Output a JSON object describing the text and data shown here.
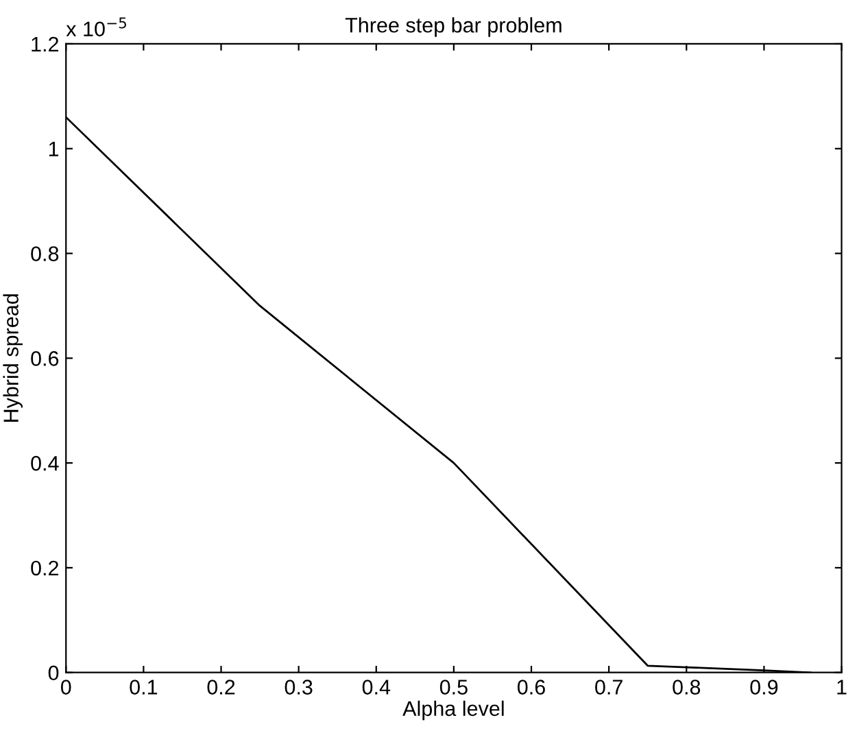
{
  "chart_data": {
    "type": "line",
    "title": "Three step bar problem",
    "xlabel": "Alpha level",
    "ylabel": "Hybrid spread",
    "annotations": [
      "x 10$^{−5}$"
    ],
    "x": [
      0,
      0.25,
      0.5,
      0.75,
      0.8,
      0.9,
      0.96
    ],
    "series": [
      {
        "color": "#000000",
        "values": [
          1.06,
          0.7,
          0.4,
          0.013,
          0.01,
          0.004,
          0.0
        ]
      }
    ],
    "xlim": [
      0,
      1
    ],
    "xticks": [
      0,
      0.1,
      0.2,
      0.3,
      0.4,
      0.5,
      0.6,
      0.7,
      0.8,
      0.9,
      1
    ],
    "ylim": [
      0,
      1.2
    ],
    "yticks": [
      0,
      0.2,
      0.4,
      0.6,
      0.8,
      1,
      1.2
    ],
    "grid": false,
    "legend": false,
    "marker": "none",
    "line_style": "solid"
  }
}
